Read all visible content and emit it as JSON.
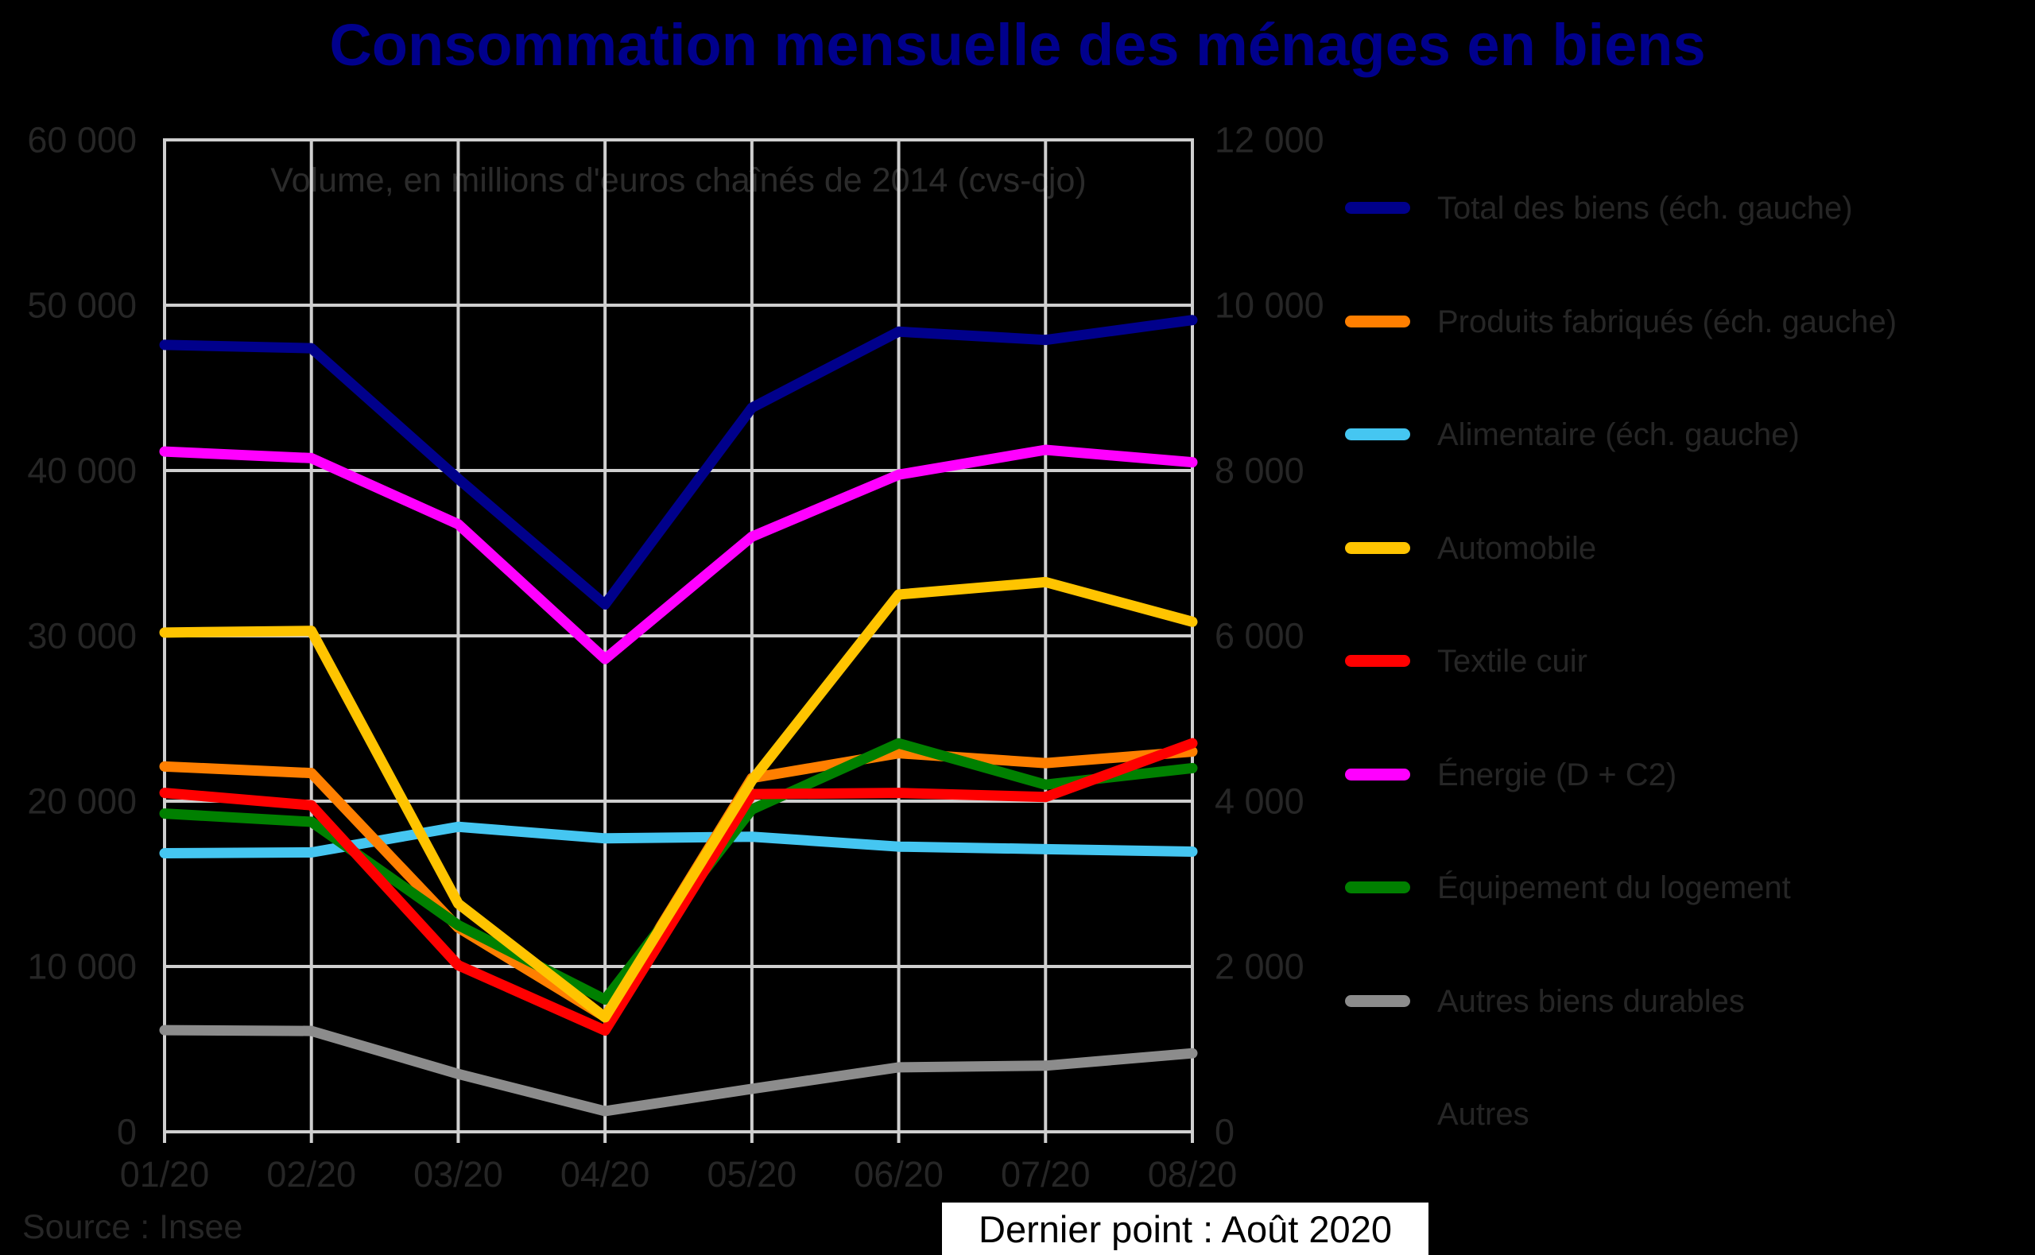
{
  "title": "Consommation mensuelle des ménages en biens",
  "subtitle": "Volume, en millions d'euros chaînés de 2014 (cvs-cjo)",
  "source": "Source : Insee",
  "last_point": "Dernier point : Août 2020",
  "colors": {
    "background": "#000000",
    "title": "#00008B",
    "grid": "#cfcfcf",
    "dim_text": "#262626",
    "last_point_box_bg": "#ffffff"
  },
  "chart_data": {
    "type": "line",
    "title": "Consommation mensuelle des ménages en biens",
    "subtitle": "Volume, en millions d'euros chaînés de 2014 (cvs-cjo)",
    "categories": [
      "01/20",
      "02/20",
      "03/20",
      "04/20",
      "05/20",
      "06/20",
      "07/20",
      "08/20"
    ],
    "left_axis": {
      "label_ticks": [
        "60 000",
        "50 000",
        "40 000",
        "30 000",
        "20 000",
        "10 000",
        "0"
      ],
      "range": [
        0,
        60000
      ],
      "tick_step": 10000
    },
    "right_axis": {
      "label_ticks": [
        "12 000",
        "10 000",
        "8 000",
        "6 000",
        "4 000",
        "2 000",
        "0"
      ],
      "range": [
        0,
        12000
      ],
      "tick_step": 2000
    },
    "grid": true,
    "legend_position": "right",
    "series": [
      {
        "name": "Total des biens (éch. gauche)",
        "color": "#00008B",
        "axis": "left",
        "values": [
          47600,
          47400,
          39500,
          31900,
          43800,
          48400,
          47900,
          49100
        ]
      },
      {
        "name": "Produits fabriqués (éch. gauche)",
        "color": "#FF7F00",
        "axis": "left",
        "values": [
          22100,
          21700,
          12350,
          6950,
          21400,
          22900,
          22300,
          23000
        ]
      },
      {
        "name": "Alimentaire (éch. gauche)",
        "color": "#45C6F1",
        "axis": "left",
        "values": [
          16850,
          16900,
          18450,
          17750,
          17850,
          17250,
          17100,
          16950
        ]
      },
      {
        "name": "Automobile",
        "color": "#FFC400",
        "axis": "right",
        "values": [
          6040,
          6060,
          2760,
          1385,
          4250,
          6500,
          6650,
          6170
        ]
      },
      {
        "name": "Textile cuir",
        "color": "#FF0000",
        "axis": "right",
        "values": [
          4100,
          3950,
          2015,
          1225,
          4085,
          4100,
          4050,
          4700
        ]
      },
      {
        "name": "Énergie (D + C2)",
        "color": "#FF00FF",
        "axis": "right",
        "values": [
          8230,
          8150,
          7350,
          5720,
          7200,
          7950,
          8250,
          8100
        ]
      },
      {
        "name": "Équipement du logement",
        "color": "#008000",
        "axis": "right",
        "values": [
          3850,
          3750,
          2500,
          1600,
          3900,
          4700,
          4200,
          4400
        ]
      },
      {
        "name": "Autres biens durables",
        "color": "#8C8C8C",
        "axis": "right",
        "values": [
          1230,
          1220,
          700,
          250,
          520,
          780,
          800,
          950
        ]
      },
      {
        "name": "Autres",
        "color": "#000000",
        "axis": "right",
        "values": null,
        "note": "line drawn in black, not visible on black background"
      }
    ]
  }
}
